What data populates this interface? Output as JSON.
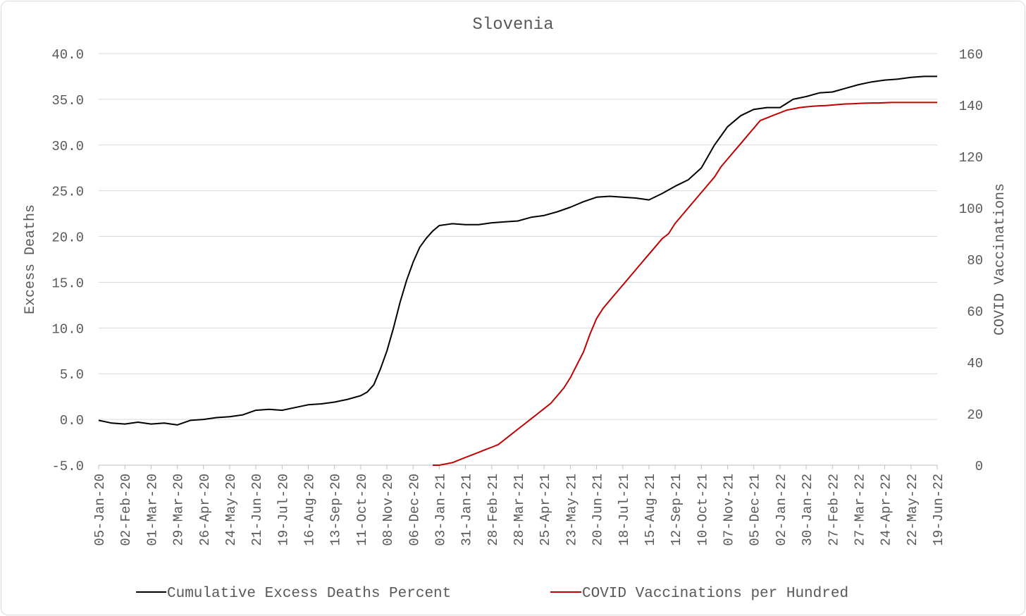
{
  "chart_data": {
    "type": "line",
    "title": "Slovenia",
    "ylabel": "Excess Deaths",
    "y2label": "COVID Vaccinations",
    "ylim": [
      -5,
      40
    ],
    "yticks": [
      "40.0",
      "35.0",
      "30.0",
      "25.0",
      "20.0",
      "15.0",
      "10.0",
      "5.0",
      "0.0",
      "-5.0"
    ],
    "y2lim": [
      0,
      160
    ],
    "y2ticks": [
      "160",
      "140",
      "120",
      "100",
      "80",
      "60",
      "40",
      "20",
      "0"
    ],
    "x_start": "2020-01-05",
    "x_end": "2022-06-19",
    "x_interval_weeks": 4,
    "xticks": [
      "05-Jan-20",
      "02-Feb-20",
      "01-Mar-20",
      "29-Mar-20",
      "26-Apr-20",
      "24-May-20",
      "21-Jun-20",
      "19-Jul-20",
      "16-Aug-20",
      "13-Sep-20",
      "11-Oct-20",
      "08-Nov-20",
      "06-Dec-20",
      "03-Jan-21",
      "31-Jan-21",
      "28-Feb-21",
      "28-Mar-21",
      "25-Apr-21",
      "23-May-21",
      "20-Jun-21",
      "18-Jul-21",
      "15-Aug-21",
      "12-Sep-21",
      "10-Oct-21",
      "07-Nov-21",
      "05-Dec-21",
      "02-Jan-22",
      "30-Jan-22",
      "27-Feb-22",
      "27-Mar-22",
      "24-Apr-22",
      "22-May-22",
      "19-Jun-22"
    ],
    "grid": true,
    "legend_position": "bottom",
    "series": [
      {
        "name": "Cumulative Excess Deaths Percent",
        "axis": "left",
        "color": "#000000",
        "x": [
          "2020-01-05",
          "2020-01-19",
          "2020-02-02",
          "2020-02-16",
          "2020-03-01",
          "2020-03-15",
          "2020-03-29",
          "2020-04-12",
          "2020-04-26",
          "2020-05-10",
          "2020-05-24",
          "2020-06-07",
          "2020-06-21",
          "2020-07-05",
          "2020-07-19",
          "2020-08-02",
          "2020-08-16",
          "2020-08-30",
          "2020-09-13",
          "2020-09-27",
          "2020-10-11",
          "2020-10-18",
          "2020-10-25",
          "2020-11-01",
          "2020-11-08",
          "2020-11-15",
          "2020-11-22",
          "2020-11-29",
          "2020-12-06",
          "2020-12-13",
          "2020-12-20",
          "2020-12-27",
          "2021-01-03",
          "2021-01-17",
          "2021-01-31",
          "2021-02-14",
          "2021-02-28",
          "2021-03-14",
          "2021-03-28",
          "2021-04-11",
          "2021-04-25",
          "2021-05-09",
          "2021-05-23",
          "2021-06-06",
          "2021-06-20",
          "2021-07-04",
          "2021-07-18",
          "2021-08-01",
          "2021-08-15",
          "2021-08-29",
          "2021-09-12",
          "2021-09-26",
          "2021-10-10",
          "2021-10-24",
          "2021-11-07",
          "2021-11-21",
          "2021-12-05",
          "2021-12-19",
          "2022-01-02",
          "2022-01-16",
          "2022-01-30",
          "2022-02-13",
          "2022-02-27",
          "2022-03-13",
          "2022-03-27",
          "2022-04-10",
          "2022-04-24",
          "2022-05-08",
          "2022-05-22",
          "2022-06-05",
          "2022-06-19"
        ],
        "y": [
          -0.1,
          -0.4,
          -0.5,
          -0.3,
          -0.5,
          -0.4,
          -0.6,
          -0.1,
          0.0,
          0.2,
          0.3,
          0.5,
          1.0,
          1.1,
          1.0,
          1.3,
          1.6,
          1.7,
          1.9,
          2.2,
          2.6,
          3.0,
          3.8,
          5.5,
          7.5,
          10.0,
          12.8,
          15.2,
          17.2,
          18.8,
          19.8,
          20.6,
          21.2,
          21.4,
          21.3,
          21.3,
          21.5,
          21.6,
          21.7,
          22.1,
          22.3,
          22.7,
          23.2,
          23.8,
          24.3,
          24.4,
          24.3,
          24.2,
          24.0,
          24.7,
          25.5,
          26.2,
          27.5,
          30.0,
          32.0,
          33.2,
          33.9,
          34.1,
          34.1,
          35.0,
          35.3,
          35.7,
          35.8,
          36.2,
          36.6,
          36.9,
          37.1,
          37.2,
          37.4,
          37.5,
          37.5
        ]
      },
      {
        "name": "COVID Vaccinations per Hundred",
        "axis": "right",
        "color": "#c00000",
        "x": [
          "2020-12-27",
          "2021-01-03",
          "2021-01-10",
          "2021-01-17",
          "2021-01-24",
          "2021-01-31",
          "2021-02-07",
          "2021-02-14",
          "2021-02-21",
          "2021-02-28",
          "2021-03-07",
          "2021-03-14",
          "2021-03-21",
          "2021-03-28",
          "2021-04-04",
          "2021-04-11",
          "2021-04-18",
          "2021-04-25",
          "2021-05-02",
          "2021-05-09",
          "2021-05-16",
          "2021-05-23",
          "2021-05-30",
          "2021-06-06",
          "2021-06-13",
          "2021-06-20",
          "2021-06-27",
          "2021-07-04",
          "2021-07-11",
          "2021-07-18",
          "2021-07-25",
          "2021-08-01",
          "2021-08-08",
          "2021-08-15",
          "2021-08-22",
          "2021-08-29",
          "2021-09-05",
          "2021-09-12",
          "2021-09-19",
          "2021-09-26",
          "2021-10-03",
          "2021-10-10",
          "2021-10-17",
          "2021-10-24",
          "2021-10-31",
          "2021-11-07",
          "2021-11-14",
          "2021-11-21",
          "2021-11-28",
          "2021-12-05",
          "2021-12-12",
          "2021-12-19",
          "2021-12-26",
          "2022-01-02",
          "2022-01-09",
          "2022-01-16",
          "2022-01-23",
          "2022-01-30",
          "2022-02-06",
          "2022-02-13",
          "2022-02-20",
          "2022-02-27",
          "2022-03-06",
          "2022-03-13",
          "2022-03-20",
          "2022-03-27",
          "2022-04-03",
          "2022-04-10",
          "2022-04-17",
          "2022-04-24",
          "2022-05-01",
          "2022-05-08",
          "2022-05-15",
          "2022-05-22",
          "2022-05-29",
          "2022-06-05",
          "2022-06-12",
          "2022-06-19"
        ],
        "y": [
          0,
          0,
          0.5,
          1,
          2,
          3,
          4,
          5,
          6,
          7,
          8,
          10,
          12,
          14,
          16,
          18,
          20,
          22,
          24,
          27,
          30,
          34,
          39,
          44,
          51,
          57,
          61,
          64,
          67,
          70,
          73,
          76,
          79,
          82,
          85,
          88,
          90,
          94,
          97,
          100,
          103,
          106,
          109,
          112,
          116,
          119,
          122,
          125,
          128,
          131,
          134,
          135,
          136,
          137,
          138,
          138.5,
          139,
          139.3,
          139.5,
          139.7,
          139.8,
          140,
          140.2,
          140.4,
          140.5,
          140.6,
          140.7,
          140.8,
          140.8,
          140.9,
          141,
          141,
          141,
          141,
          141,
          141,
          141,
          141
        ]
      }
    ]
  }
}
